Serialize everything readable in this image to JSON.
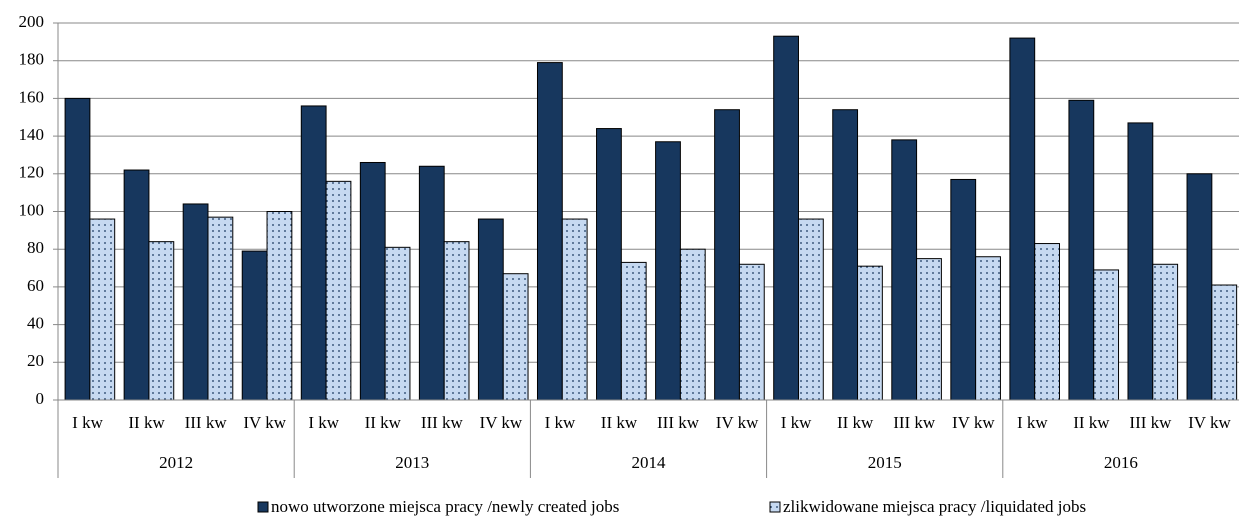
{
  "chart_data": {
    "type": "bar",
    "categories": [
      "I kw",
      "II kw",
      "III kw",
      "IV kw",
      "I kw",
      "II kw",
      "III kw",
      "IV kw",
      "I kw",
      "II kw",
      "III kw",
      "IV kw",
      "I kw",
      "II kw",
      "III kw",
      "IV kw",
      "I kw",
      "II kw",
      "III kw",
      "IV kw"
    ],
    "groups": [
      "2012",
      "2013",
      "2014",
      "2015",
      "2016"
    ],
    "series": [
      {
        "name": "nowo utworzone miejsca pracy /newly created jobs",
        "color": "#17375e",
        "values": [
          160,
          122,
          104,
          79,
          156,
          126,
          124,
          96,
          179,
          144,
          137,
          154,
          193,
          154,
          138,
          117,
          192,
          159,
          147,
          120
        ]
      },
      {
        "name": "zlikwidowane miejsca pracy /liquidated jobs",
        "color": "#c6d9f1",
        "values": [
          96,
          84,
          97,
          100,
          116,
          81,
          84,
          67,
          96,
          73,
          80,
          72,
          96,
          71,
          75,
          76,
          83,
          69,
          72,
          61
        ]
      }
    ],
    "ylim": [
      0,
      200
    ],
    "yticks": [
      0,
      20,
      40,
      60,
      80,
      100,
      120,
      140,
      160,
      180,
      200
    ],
    "grid": true,
    "legend": "bottom"
  }
}
